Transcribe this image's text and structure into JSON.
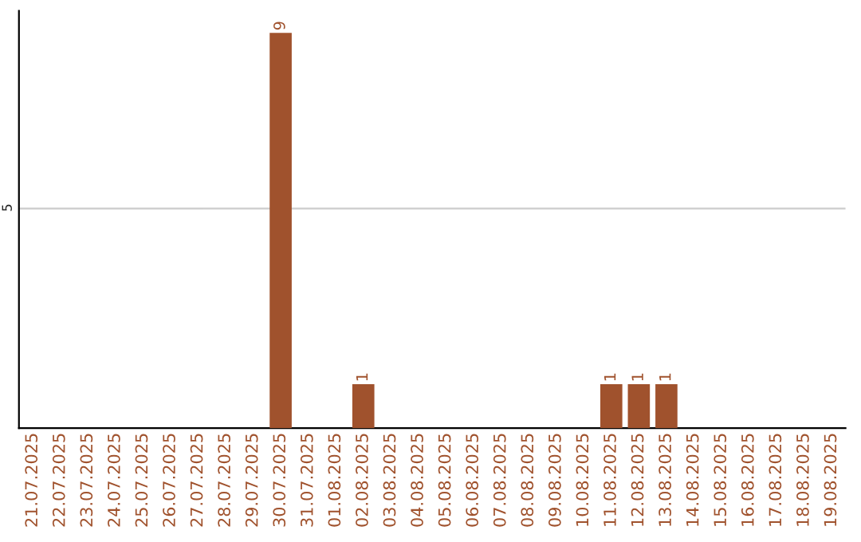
{
  "chart_data": {
    "type": "bar",
    "categories": [
      "21.07.2025",
      "22.07.2025",
      "23.07.2025",
      "24.07.2025",
      "25.07.2025",
      "26.07.2025",
      "27.07.2025",
      "28.07.2025",
      "29.07.2025",
      "30.07.2025",
      "31.07.2025",
      "01.08.2025",
      "02.08.2025",
      "03.08.2025",
      "04.08.2025",
      "05.08.2025",
      "06.08.2025",
      "07.08.2025",
      "08.08.2025",
      "09.08.2025",
      "10.08.2025",
      "11.08.2025",
      "12.08.2025",
      "13.08.2025",
      "14.08.2025",
      "15.08.2025",
      "16.08.2025",
      "17.08.2025",
      "18.08.2025",
      "19.08.2025"
    ],
    "values": [
      0,
      0,
      0,
      0,
      0,
      0,
      0,
      0,
      0,
      9,
      0,
      0,
      1,
      0,
      0,
      0,
      0,
      0,
      0,
      0,
      0,
      1,
      1,
      1,
      0,
      0,
      0,
      0,
      0,
      0
    ],
    "value_labels": [
      null,
      null,
      null,
      null,
      null,
      null,
      null,
      null,
      null,
      "9",
      null,
      null,
      "1",
      null,
      null,
      null,
      null,
      null,
      null,
      null,
      null,
      "1",
      "1",
      "1",
      null,
      null,
      null,
      null,
      null,
      null
    ],
    "color": "#a0522d",
    "ylim": [
      0,
      9.5
    ],
    "yticks": [
      5
    ],
    "grid": "y"
  }
}
